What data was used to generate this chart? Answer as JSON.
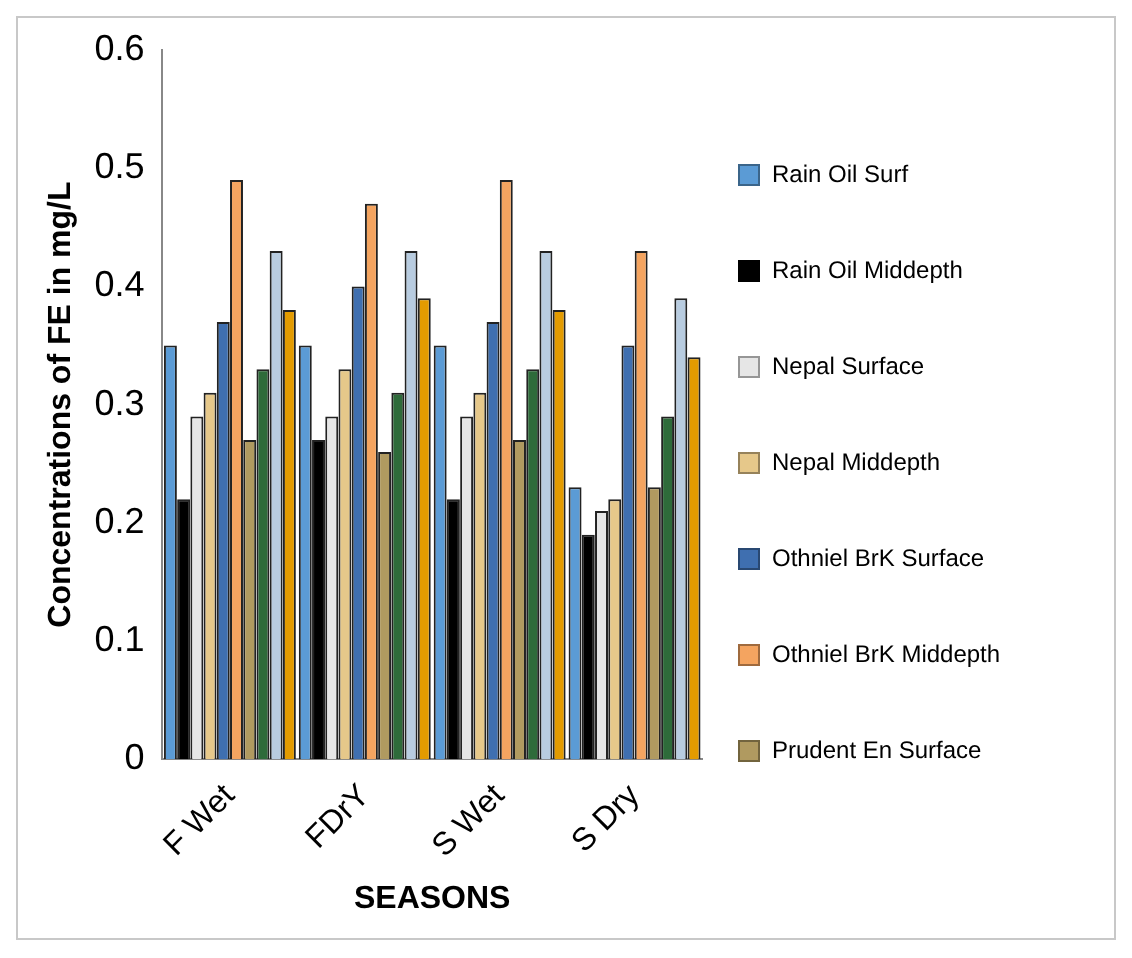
{
  "chart_data": {
    "type": "bar",
    "xlabel": "SEASONS",
    "ylabel": "Concentrations of FE in mg/L",
    "categories": [
      "F Wet",
      "FDrY",
      "S Wet",
      "S Dry"
    ],
    "series": [
      {
        "name": "Rain Oil Surf",
        "color": "#5b9bd5",
        "values": [
          0.35,
          0.35,
          0.35,
          0.23
        ]
      },
      {
        "name": "Rain Oil Middepth",
        "color": "#000000",
        "values": [
          0.22,
          0.27,
          0.22,
          0.19
        ]
      },
      {
        "name": "Nepal Surface",
        "color": "#e6e6e6",
        "values": [
          0.29,
          0.29,
          0.29,
          0.21
        ]
      },
      {
        "name": "Nepal Middepth",
        "color": "#e6c88a",
        "values": [
          0.31,
          0.33,
          0.31,
          0.22
        ]
      },
      {
        "name": "Othniel BrK Surface",
        "color": "#3f6fb0",
        "values": [
          0.37,
          0.4,
          0.37,
          0.35
        ]
      },
      {
        "name": "Othniel BrK Middepth",
        "color": "#f4a460",
        "values": [
          0.49,
          0.47,
          0.49,
          0.43
        ]
      },
      {
        "name": "Prudent En Surface",
        "color": "#b09a60",
        "values": [
          0.27,
          0.26,
          0.27,
          0.23
        ]
      },
      {
        "color": "#2e6b3a",
        "values": [
          0.33,
          0.31,
          0.33,
          0.29
        ]
      },
      {
        "color": "#b8cce0",
        "values": [
          0.43,
          0.43,
          0.43,
          0.39
        ]
      },
      {
        "color": "#e39b00",
        "values": [
          0.38,
          0.39,
          0.38,
          0.34
        ]
      }
    ],
    "ylim": [
      0,
      0.6
    ],
    "yticks": [
      0,
      0.1,
      0.2,
      0.3,
      0.4,
      0.5,
      0.6
    ],
    "grid": false,
    "legend": "right"
  }
}
